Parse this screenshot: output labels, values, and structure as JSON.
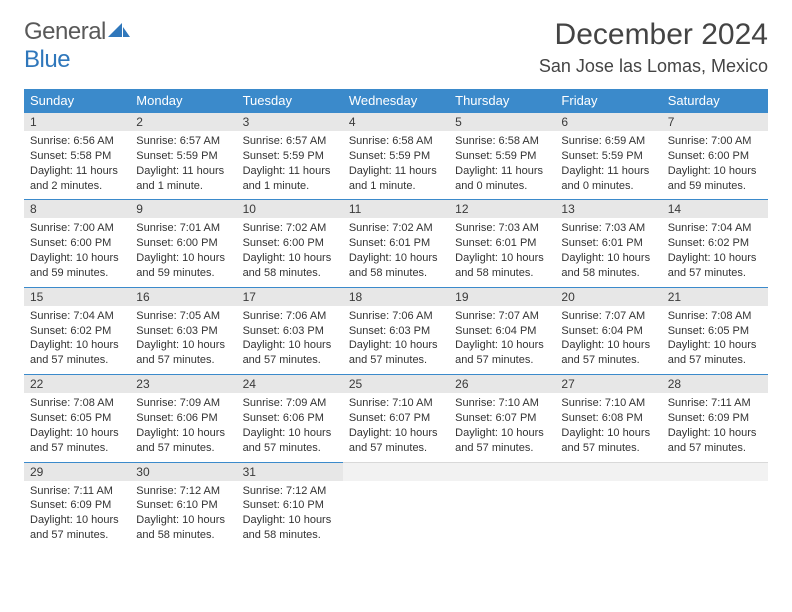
{
  "logo": {
    "word1": "General",
    "word2": "Blue"
  },
  "title": "December 2024",
  "location": "San Jose las Lomas, Mexico",
  "colors": {
    "header_bg": "#3b8acb",
    "header_text": "#ffffff",
    "daynum_bg": "#e7e7e7",
    "text": "#333333",
    "logo_gray": "#595959",
    "logo_blue": "#2f77bb"
  },
  "day_headers": [
    "Sunday",
    "Monday",
    "Tuesday",
    "Wednesday",
    "Thursday",
    "Friday",
    "Saturday"
  ],
  "weeks": [
    [
      {
        "n": "1",
        "sr": "6:56 AM",
        "ss": "5:58 PM",
        "dl": "11 hours and 2 minutes."
      },
      {
        "n": "2",
        "sr": "6:57 AM",
        "ss": "5:59 PM",
        "dl": "11 hours and 1 minute."
      },
      {
        "n": "3",
        "sr": "6:57 AM",
        "ss": "5:59 PM",
        "dl": "11 hours and 1 minute."
      },
      {
        "n": "4",
        "sr": "6:58 AM",
        "ss": "5:59 PM",
        "dl": "11 hours and 1 minute."
      },
      {
        "n": "5",
        "sr": "6:58 AM",
        "ss": "5:59 PM",
        "dl": "11 hours and 0 minutes."
      },
      {
        "n": "6",
        "sr": "6:59 AM",
        "ss": "5:59 PM",
        "dl": "11 hours and 0 minutes."
      },
      {
        "n": "7",
        "sr": "7:00 AM",
        "ss": "6:00 PM",
        "dl": "10 hours and 59 minutes."
      }
    ],
    [
      {
        "n": "8",
        "sr": "7:00 AM",
        "ss": "6:00 PM",
        "dl": "10 hours and 59 minutes."
      },
      {
        "n": "9",
        "sr": "7:01 AM",
        "ss": "6:00 PM",
        "dl": "10 hours and 59 minutes."
      },
      {
        "n": "10",
        "sr": "7:02 AM",
        "ss": "6:00 PM",
        "dl": "10 hours and 58 minutes."
      },
      {
        "n": "11",
        "sr": "7:02 AM",
        "ss": "6:01 PM",
        "dl": "10 hours and 58 minutes."
      },
      {
        "n": "12",
        "sr": "7:03 AM",
        "ss": "6:01 PM",
        "dl": "10 hours and 58 minutes."
      },
      {
        "n": "13",
        "sr": "7:03 AM",
        "ss": "6:01 PM",
        "dl": "10 hours and 58 minutes."
      },
      {
        "n": "14",
        "sr": "7:04 AM",
        "ss": "6:02 PM",
        "dl": "10 hours and 57 minutes."
      }
    ],
    [
      {
        "n": "15",
        "sr": "7:04 AM",
        "ss": "6:02 PM",
        "dl": "10 hours and 57 minutes."
      },
      {
        "n": "16",
        "sr": "7:05 AM",
        "ss": "6:03 PM",
        "dl": "10 hours and 57 minutes."
      },
      {
        "n": "17",
        "sr": "7:06 AM",
        "ss": "6:03 PM",
        "dl": "10 hours and 57 minutes."
      },
      {
        "n": "18",
        "sr": "7:06 AM",
        "ss": "6:03 PM",
        "dl": "10 hours and 57 minutes."
      },
      {
        "n": "19",
        "sr": "7:07 AM",
        "ss": "6:04 PM",
        "dl": "10 hours and 57 minutes."
      },
      {
        "n": "20",
        "sr": "7:07 AM",
        "ss": "6:04 PM",
        "dl": "10 hours and 57 minutes."
      },
      {
        "n": "21",
        "sr": "7:08 AM",
        "ss": "6:05 PM",
        "dl": "10 hours and 57 minutes."
      }
    ],
    [
      {
        "n": "22",
        "sr": "7:08 AM",
        "ss": "6:05 PM",
        "dl": "10 hours and 57 minutes."
      },
      {
        "n": "23",
        "sr": "7:09 AM",
        "ss": "6:06 PM",
        "dl": "10 hours and 57 minutes."
      },
      {
        "n": "24",
        "sr": "7:09 AM",
        "ss": "6:06 PM",
        "dl": "10 hours and 57 minutes."
      },
      {
        "n": "25",
        "sr": "7:10 AM",
        "ss": "6:07 PM",
        "dl": "10 hours and 57 minutes."
      },
      {
        "n": "26",
        "sr": "7:10 AM",
        "ss": "6:07 PM",
        "dl": "10 hours and 57 minutes."
      },
      {
        "n": "27",
        "sr": "7:10 AM",
        "ss": "6:08 PM",
        "dl": "10 hours and 57 minutes."
      },
      {
        "n": "28",
        "sr": "7:11 AM",
        "ss": "6:09 PM",
        "dl": "10 hours and 57 minutes."
      }
    ],
    [
      {
        "n": "29",
        "sr": "7:11 AM",
        "ss": "6:09 PM",
        "dl": "10 hours and 57 minutes."
      },
      {
        "n": "30",
        "sr": "7:12 AM",
        "ss": "6:10 PM",
        "dl": "10 hours and 58 minutes."
      },
      {
        "n": "31",
        "sr": "7:12 AM",
        "ss": "6:10 PM",
        "dl": "10 hours and 58 minutes."
      },
      null,
      null,
      null,
      null
    ]
  ],
  "labels": {
    "sunrise": "Sunrise:",
    "sunset": "Sunset:",
    "daylight": "Daylight:"
  }
}
